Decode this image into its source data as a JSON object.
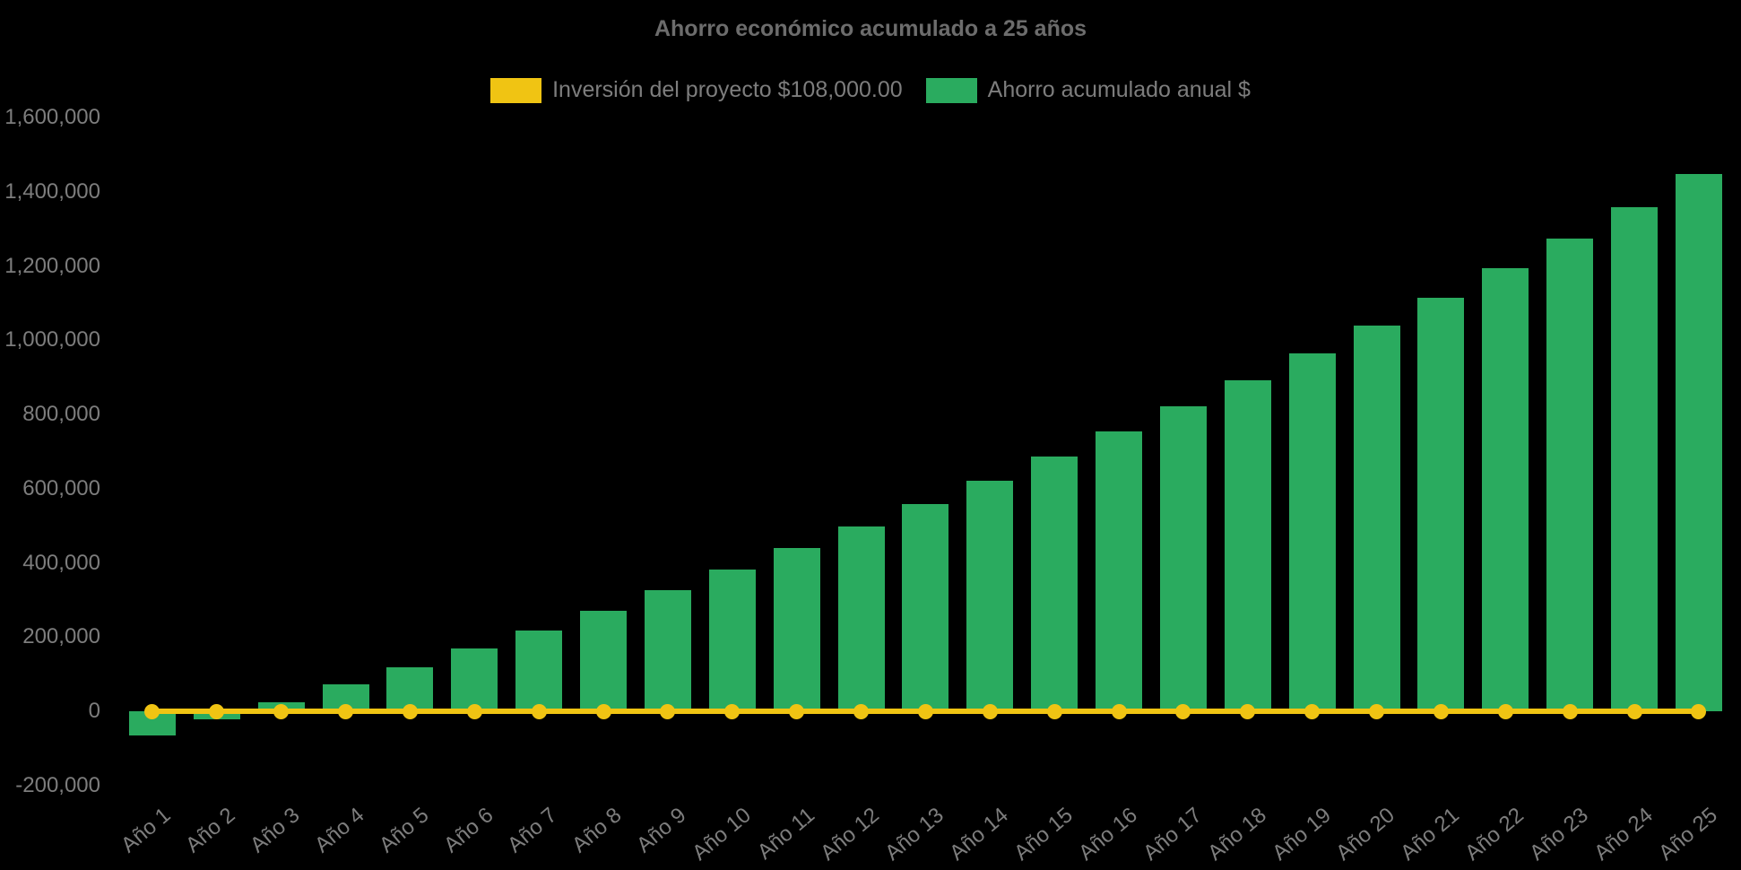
{
  "chart_data": {
    "type": "bar",
    "title": "Ahorro económico acumulado a 25 años",
    "categories": [
      "Año 1",
      "Año 2",
      "Año 3",
      "Año 4",
      "Año 5",
      "Año 6",
      "Año 7",
      "Año 8",
      "Año 9",
      "Año 10",
      "Año 11",
      "Año 12",
      "Año 13",
      "Año 14",
      "Año 15",
      "Año 16",
      "Año 17",
      "Año 18",
      "Año 19",
      "Año 20",
      "Año 21",
      "Año 22",
      "Año 23",
      "Año 24",
      "Año 25"
    ],
    "series": [
      {
        "name": "Inversión del proyecto $108,000.00",
        "type": "line",
        "color": "#f0c413",
        "marker": "circle",
        "plotted_value": 0
      },
      {
        "name": "Ahorro acumulado anual $",
        "type": "bar",
        "color": "#2aab5f",
        "values": [
          -65000,
          -22000,
          24000,
          72000,
          119000,
          169000,
          218000,
          271000,
          326000,
          382000,
          440000,
          498000,
          558000,
          621000,
          686000,
          754000,
          822000,
          893000,
          965000,
          1039000,
          1115000,
          1193000,
          1274000,
          1358000,
          1448000
        ]
      }
    ],
    "ylim": [
      -200000,
      1600000
    ],
    "ytick_step": 200000,
    "ytick_labels": [
      "-200,000",
      "0",
      "200,000",
      "400,000",
      "600,000",
      "800,000",
      "1,000,000",
      "1,200,000",
      "1,400,000",
      "1,600,000"
    ],
    "grid": false,
    "legend_position": "top",
    "background": "#000000",
    "text_color": "#7d7d7d",
    "title_color": "#6c6c6c"
  }
}
